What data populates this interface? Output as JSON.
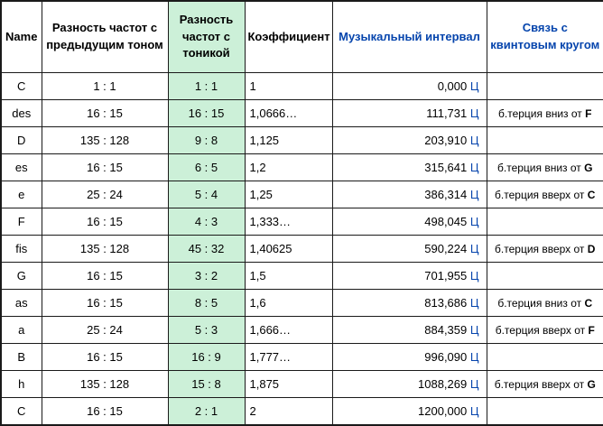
{
  "table": {
    "headers": {
      "name": "Name",
      "prev": "Разность частот с предыдущим тоном",
      "tonic": "Разность частот с тоникой",
      "coefficient": "Коэффициент",
      "interval": "Музыкальный интервал",
      "fifths": "Связь с квинтовым кругом"
    },
    "colors": {
      "highlight_green": "#ccf0d8",
      "link_blue": "#0645ad",
      "border": "#1a1a1a"
    },
    "rows": [
      {
        "name": "C",
        "prev_ratio": "1 : 1",
        "tonic_ratio": "1 : 1",
        "coefficient": "1",
        "cents": "0,000",
        "unit": "Ц",
        "relation": "",
        "relation_note": ""
      },
      {
        "name": "des",
        "prev_ratio": "16 : 15",
        "tonic_ratio": "16 : 15",
        "coefficient": "1,0666…",
        "cents": "111,731",
        "unit": "Ц",
        "relation": "б.терция вниз от",
        "relation_note": "F"
      },
      {
        "name": "D",
        "prev_ratio": "135 : 128",
        "tonic_ratio": "9 : 8",
        "coefficient": "1,125",
        "cents": "203,910",
        "unit": "Ц",
        "relation": "",
        "relation_note": ""
      },
      {
        "name": "es",
        "prev_ratio": "16 : 15",
        "tonic_ratio": "6 : 5",
        "coefficient": "1,2",
        "cents": "315,641",
        "unit": "Ц",
        "relation": "б.терция вниз от",
        "relation_note": "G"
      },
      {
        "name": "e",
        "prev_ratio": "25 : 24",
        "tonic_ratio": "5 : 4",
        "coefficient": "1,25",
        "cents": "386,314",
        "unit": "Ц",
        "relation": "б.терция вверх от",
        "relation_note": "C"
      },
      {
        "name": "F",
        "prev_ratio": "16 : 15",
        "tonic_ratio": "4 : 3",
        "coefficient": "1,333…",
        "cents": "498,045",
        "unit": "Ц",
        "relation": "",
        "relation_note": ""
      },
      {
        "name": "fis",
        "prev_ratio": "135 : 128",
        "tonic_ratio": "45 : 32",
        "coefficient": "1,40625",
        "cents": "590,224",
        "unit": "Ц",
        "relation": "б.терция вверх от",
        "relation_note": "D"
      },
      {
        "name": "G",
        "prev_ratio": "16 : 15",
        "tonic_ratio": "3 : 2",
        "coefficient": "1,5",
        "cents": "701,955",
        "unit": "Ц",
        "relation": "",
        "relation_note": ""
      },
      {
        "name": "as",
        "prev_ratio": "16 : 15",
        "tonic_ratio": "8 : 5",
        "coefficient": "1,6",
        "cents": "813,686",
        "unit": "Ц",
        "relation": "б.терция вниз от",
        "relation_note": "C"
      },
      {
        "name": "a",
        "prev_ratio": "25 : 24",
        "tonic_ratio": "5 : 3",
        "coefficient": "1,666…",
        "cents": "884,359",
        "unit": "Ц",
        "relation": "б.терция вверх от",
        "relation_note": "F"
      },
      {
        "name": "B",
        "prev_ratio": "16 : 15",
        "tonic_ratio": "16 : 9",
        "coefficient": "1,777…",
        "cents": "996,090",
        "unit": "Ц",
        "relation": "",
        "relation_note": ""
      },
      {
        "name": "h",
        "prev_ratio": "135 : 128",
        "tonic_ratio": "15 : 8",
        "coefficient": "1,875",
        "cents": "1088,269",
        "unit": "Ц",
        "relation": "б.терция вверх от",
        "relation_note": "G"
      },
      {
        "name": "C",
        "prev_ratio": "16 : 15",
        "tonic_ratio": "2 : 1",
        "coefficient": "2",
        "cents": "1200,000",
        "unit": "Ц",
        "relation": "",
        "relation_note": ""
      }
    ]
  }
}
